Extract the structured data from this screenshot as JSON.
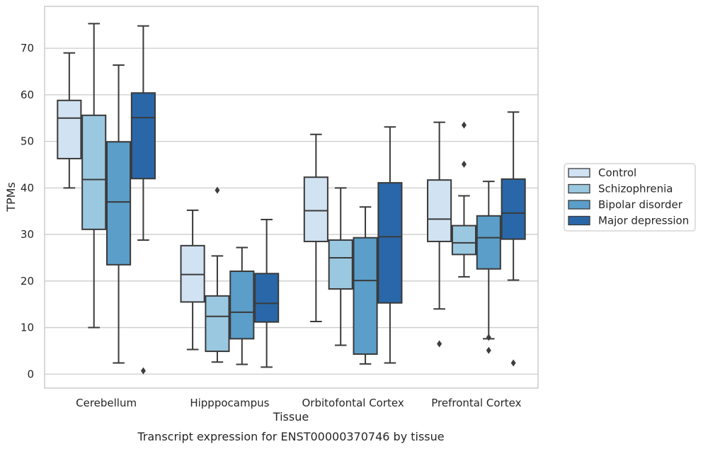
{
  "chart_data": {
    "type": "box",
    "title": "",
    "caption": "Transcript expression for ENST00000370746 by tissue",
    "xlabel": "Tissue",
    "ylabel": "TPMs",
    "ylim": [
      -3,
      79
    ],
    "yticks": [
      0,
      10,
      20,
      30,
      40,
      50,
      60,
      70
    ],
    "grid": "horizontal",
    "legend_position": "right",
    "categories": [
      "Cerebellum",
      "Hipppocampus",
      "Orbitofontal Cortex",
      "Prefrontal Cortex"
    ],
    "series": [
      {
        "name": "Control",
        "color": "#d1e2f2",
        "boxes": [
          {
            "whisker_low": 40,
            "q1": 46.3,
            "median": 55,
            "q3": 58.8,
            "whisker_high": 69,
            "outliers": []
          },
          {
            "whisker_low": 5.3,
            "q1": 15.5,
            "median": 21.4,
            "q3": 27.6,
            "whisker_high": 35.2,
            "outliers": []
          },
          {
            "whisker_low": 11.3,
            "q1": 28.5,
            "median": 35.1,
            "q3": 42.3,
            "whisker_high": 51.5,
            "outliers": []
          },
          {
            "whisker_low": 14,
            "q1": 28.5,
            "median": 33.3,
            "q3": 41.7,
            "whisker_high": 54.1,
            "outliers": [
              6.5
            ]
          }
        ]
      },
      {
        "name": "Schizophrenia",
        "color": "#9ac8e0",
        "boxes": [
          {
            "whisker_low": 10,
            "q1": 31.1,
            "median": 41.8,
            "q3": 55.6,
            "whisker_high": 75.3,
            "outliers": []
          },
          {
            "whisker_low": 2.6,
            "q1": 4.9,
            "median": 12.4,
            "q3": 16.8,
            "whisker_high": 25.4,
            "outliers": [
              39.5
            ]
          },
          {
            "whisker_low": 6.2,
            "q1": 18.3,
            "median": 25,
            "q3": 28.8,
            "whisker_high": 40,
            "outliers": []
          },
          {
            "whisker_low": 20.9,
            "q1": 25.7,
            "median": 28.2,
            "q3": 31.9,
            "whisker_high": 38.3,
            "outliers": [
              53.5,
              45.1
            ]
          }
        ]
      },
      {
        "name": "Bipolar disorder",
        "color": "#5a9ec9",
        "boxes": [
          {
            "whisker_low": 2.4,
            "q1": 23.5,
            "median": 37,
            "q3": 49.9,
            "whisker_high": 66.4,
            "outliers": []
          },
          {
            "whisker_low": 2.1,
            "q1": 7.6,
            "median": 13.3,
            "q3": 22.1,
            "whisker_high": 27.2,
            "outliers": []
          },
          {
            "whisker_low": 2.2,
            "q1": 4.3,
            "median": 20.1,
            "q3": 29.3,
            "whisker_high": 35.9,
            "outliers": []
          },
          {
            "whisker_low": 7.6,
            "q1": 22.6,
            "median": 29.3,
            "q3": 34,
            "whisker_high": 41.4,
            "outliers": [
              7.9,
              5.1
            ]
          }
        ]
      },
      {
        "name": "Major depression",
        "color": "#2967a9",
        "boxes": [
          {
            "whisker_low": 28.8,
            "q1": 42,
            "median": 55.1,
            "q3": 60.4,
            "whisker_high": 74.8,
            "outliers": [
              0.7
            ]
          },
          {
            "whisker_low": 1.5,
            "q1": 11.2,
            "median": 15.2,
            "q3": 21.6,
            "whisker_high": 33.2,
            "outliers": []
          },
          {
            "whisker_low": 2.4,
            "q1": 15.3,
            "median": 29.5,
            "q3": 41.1,
            "whisker_high": 53.1,
            "outliers": []
          },
          {
            "whisker_low": 20.2,
            "q1": 29,
            "median": 34.6,
            "q3": 41.9,
            "whisker_high": 56.3,
            "outliers": [
              2.4
            ]
          }
        ]
      }
    ]
  },
  "colors": {
    "box_edge": "#3a3a3a",
    "grid": "#cccccc",
    "frame": "#cccccc"
  }
}
